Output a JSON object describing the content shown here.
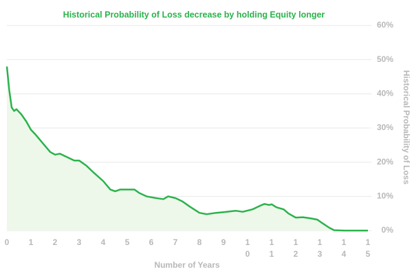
{
  "chart_data": {
    "type": "area",
    "title": "Historical Probability of Loss decrease by holding Equity longer",
    "x_label": "Number of Years",
    "y_label": "Historical Probability of Loss",
    "color": "#2bb24c",
    "fill": "#eef8ea",
    "grid": true,
    "xlim": [
      0,
      15
    ],
    "xticks": [
      0,
      1,
      2,
      3,
      4,
      5,
      6,
      7,
      8,
      9,
      10,
      11,
      12,
      13,
      14,
      15
    ],
    "ylim": [
      0,
      60
    ],
    "yticks": [
      {
        "value": 0,
        "label": "0%"
      },
      {
        "value": 10,
        "label": "10%"
      },
      {
        "value": 20,
        "label": "20%"
      },
      {
        "value": 30,
        "label": "30%"
      },
      {
        "value": 40,
        "label": "40%"
      },
      {
        "value": 50,
        "label": "50%"
      },
      {
        "value": 60,
        "label": "60%"
      }
    ],
    "x": [
      0,
      0.1,
      0.2,
      0.3,
      0.4,
      0.6,
      0.8,
      1.0,
      1.2,
      1.5,
      1.8,
      2.0,
      2.2,
      2.5,
      2.8,
      3.0,
      3.3,
      3.6,
      4.0,
      4.3,
      4.5,
      4.7,
      5.0,
      5.3,
      5.5,
      5.8,
      6.2,
      6.5,
      6.7,
      7.0,
      7.3,
      7.6,
      8.0,
      8.3,
      8.7,
      9.0,
      9.5,
      9.8,
      10.2,
      10.5,
      10.7,
      10.9,
      11.0,
      11.2,
      11.5,
      11.7,
      12.0,
      12.3,
      12.6,
      12.9,
      13.1,
      13.4,
      13.6,
      14.0,
      15.0
    ],
    "values": [
      48,
      41,
      36,
      35,
      35.5,
      34,
      32,
      29.5,
      28,
      25.5,
      23,
      22.2,
      22.5,
      21.5,
      20.5,
      20.5,
      19,
      17,
      14.5,
      12,
      11.5,
      12,
      12,
      12,
      11,
      10,
      9.5,
      9.2,
      10,
      9.5,
      8.5,
      7,
      5.2,
      4.8,
      5.2,
      5.4,
      5.8,
      5.5,
      6.2,
      7.2,
      7.8,
      7.5,
      7.7,
      6.8,
      6.2,
      5,
      3.8,
      3.9,
      3.6,
      3.2,
      2.2,
      0.8,
      0.1,
      0,
      0
    ]
  }
}
